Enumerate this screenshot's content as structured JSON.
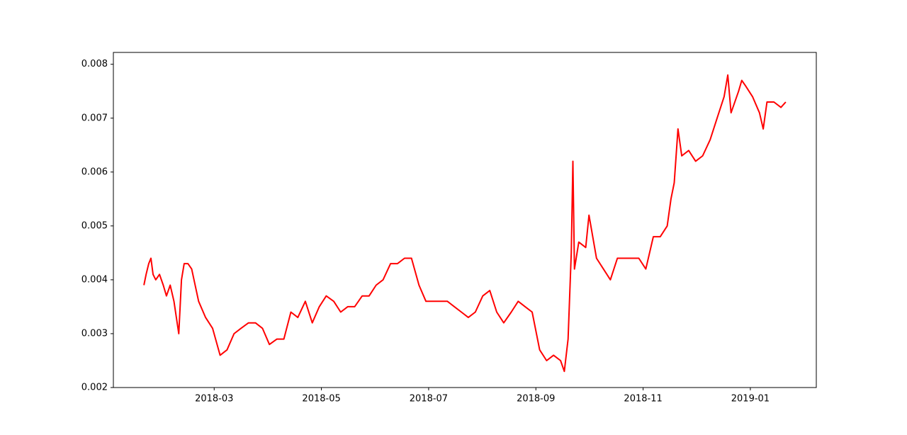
{
  "chart_data": {
    "type": "line",
    "x": [
      0.69,
      0.73,
      0.78,
      0.82,
      0.86,
      0.91,
      0.98,
      1.05,
      1.11,
      1.18,
      1.25,
      1.34,
      1.39,
      1.44,
      1.51,
      1.58,
      1.71,
      1.84,
      1.97,
      2.11,
      2.24,
      2.37,
      2.5,
      2.64,
      2.77,
      2.9,
      3.03,
      3.17,
      3.3,
      3.43,
      3.56,
      3.7,
      3.83,
      3.96,
      4.09,
      4.23,
      4.36,
      4.49,
      4.62,
      4.76,
      4.89,
      5.02,
      5.15,
      5.29,
      5.42,
      5.55,
      5.68,
      5.82,
      5.95,
      6.08,
      6.21,
      6.35,
      6.48,
      6.61,
      6.74,
      6.87,
      7.01,
      7.14,
      7.27,
      7.4,
      7.54,
      7.67,
      7.8,
      7.93,
      8.07,
      8.2,
      8.33,
      8.46,
      8.53,
      8.6,
      8.66,
      8.69,
      8.72,
      8.8,
      8.93,
      8.99,
      9.13,
      9.26,
      9.39,
      9.52,
      9.66,
      9.79,
      9.92,
      10.05,
      10.19,
      10.32,
      10.45,
      10.52,
      10.58,
      10.65,
      10.72,
      10.85,
      10.98,
      11.11,
      11.25,
      11.38,
      11.51,
      11.58,
      11.64,
      11.78,
      11.84,
      11.91,
      12.04,
      12.17,
      12.24,
      12.31,
      12.44,
      12.57,
      12.66
    ],
    "series": [
      {
        "color": "#ff0000",
        "values": [
          0.0039,
          0.0041,
          0.0043,
          0.0044,
          0.0041,
          0.004,
          0.0041,
          0.0039,
          0.0037,
          0.0039,
          0.0036,
          0.003,
          0.004,
          0.0043,
          0.0043,
          0.0042,
          0.0036,
          0.0033,
          0.0031,
          0.0026,
          0.0027,
          0.003,
          0.0031,
          0.0032,
          0.0032,
          0.0031,
          0.0028,
          0.0029,
          0.0029,
          0.0034,
          0.0033,
          0.0036,
          0.0032,
          0.0035,
          0.0037,
          0.0036,
          0.0034,
          0.0035,
          0.0035,
          0.0037,
          0.0037,
          0.0039,
          0.004,
          0.0043,
          0.0043,
          0.0044,
          0.0044,
          0.0039,
          0.0036,
          0.0036,
          0.0036,
          0.0036,
          0.0035,
          0.0034,
          0.0033,
          0.0034,
          0.0037,
          0.0038,
          0.0034,
          0.0032,
          0.0034,
          0.0036,
          0.0035,
          0.0034,
          0.0027,
          0.0025,
          0.0026,
          0.0025,
          0.0023,
          0.0029,
          0.0045,
          0.0062,
          0.0042,
          0.0047,
          0.0046,
          0.0052,
          0.0044,
          0.0042,
          0.004,
          0.0044,
          0.0044,
          0.0044,
          0.0044,
          0.0042,
          0.0048,
          0.0048,
          0.005,
          0.0055,
          0.0058,
          0.0068,
          0.0063,
          0.0064,
          0.0062,
          0.0063,
          0.0066,
          0.007,
          0.0074,
          0.0078,
          0.0071,
          0.0075,
          0.0077,
          0.0076,
          0.0074,
          0.0071,
          0.0068,
          0.0073,
          0.0073,
          0.0072,
          0.0073
        ]
      }
    ],
    "xlim": [
      0.12,
      13.23
    ],
    "xticks": [
      {
        "value": 2,
        "label": "2018-03"
      },
      {
        "value": 4,
        "label": "2018-05"
      },
      {
        "value": 6,
        "label": "2018-07"
      },
      {
        "value": 8,
        "label": "2018-09"
      },
      {
        "value": 10,
        "label": "2018-11"
      },
      {
        "value": 12,
        "label": "2019-01"
      }
    ],
    "ylim": [
      0.002,
      0.00822
    ],
    "yticks": [
      {
        "value": 0.002,
        "label": "0.002"
      },
      {
        "value": 0.003,
        "label": "0.003"
      },
      {
        "value": 0.004,
        "label": "0.004"
      },
      {
        "value": 0.005,
        "label": "0.005"
      },
      {
        "value": 0.006,
        "label": "0.006"
      },
      {
        "value": 0.007,
        "label": "0.007"
      },
      {
        "value": 0.008,
        "label": "0.008"
      }
    ]
  }
}
